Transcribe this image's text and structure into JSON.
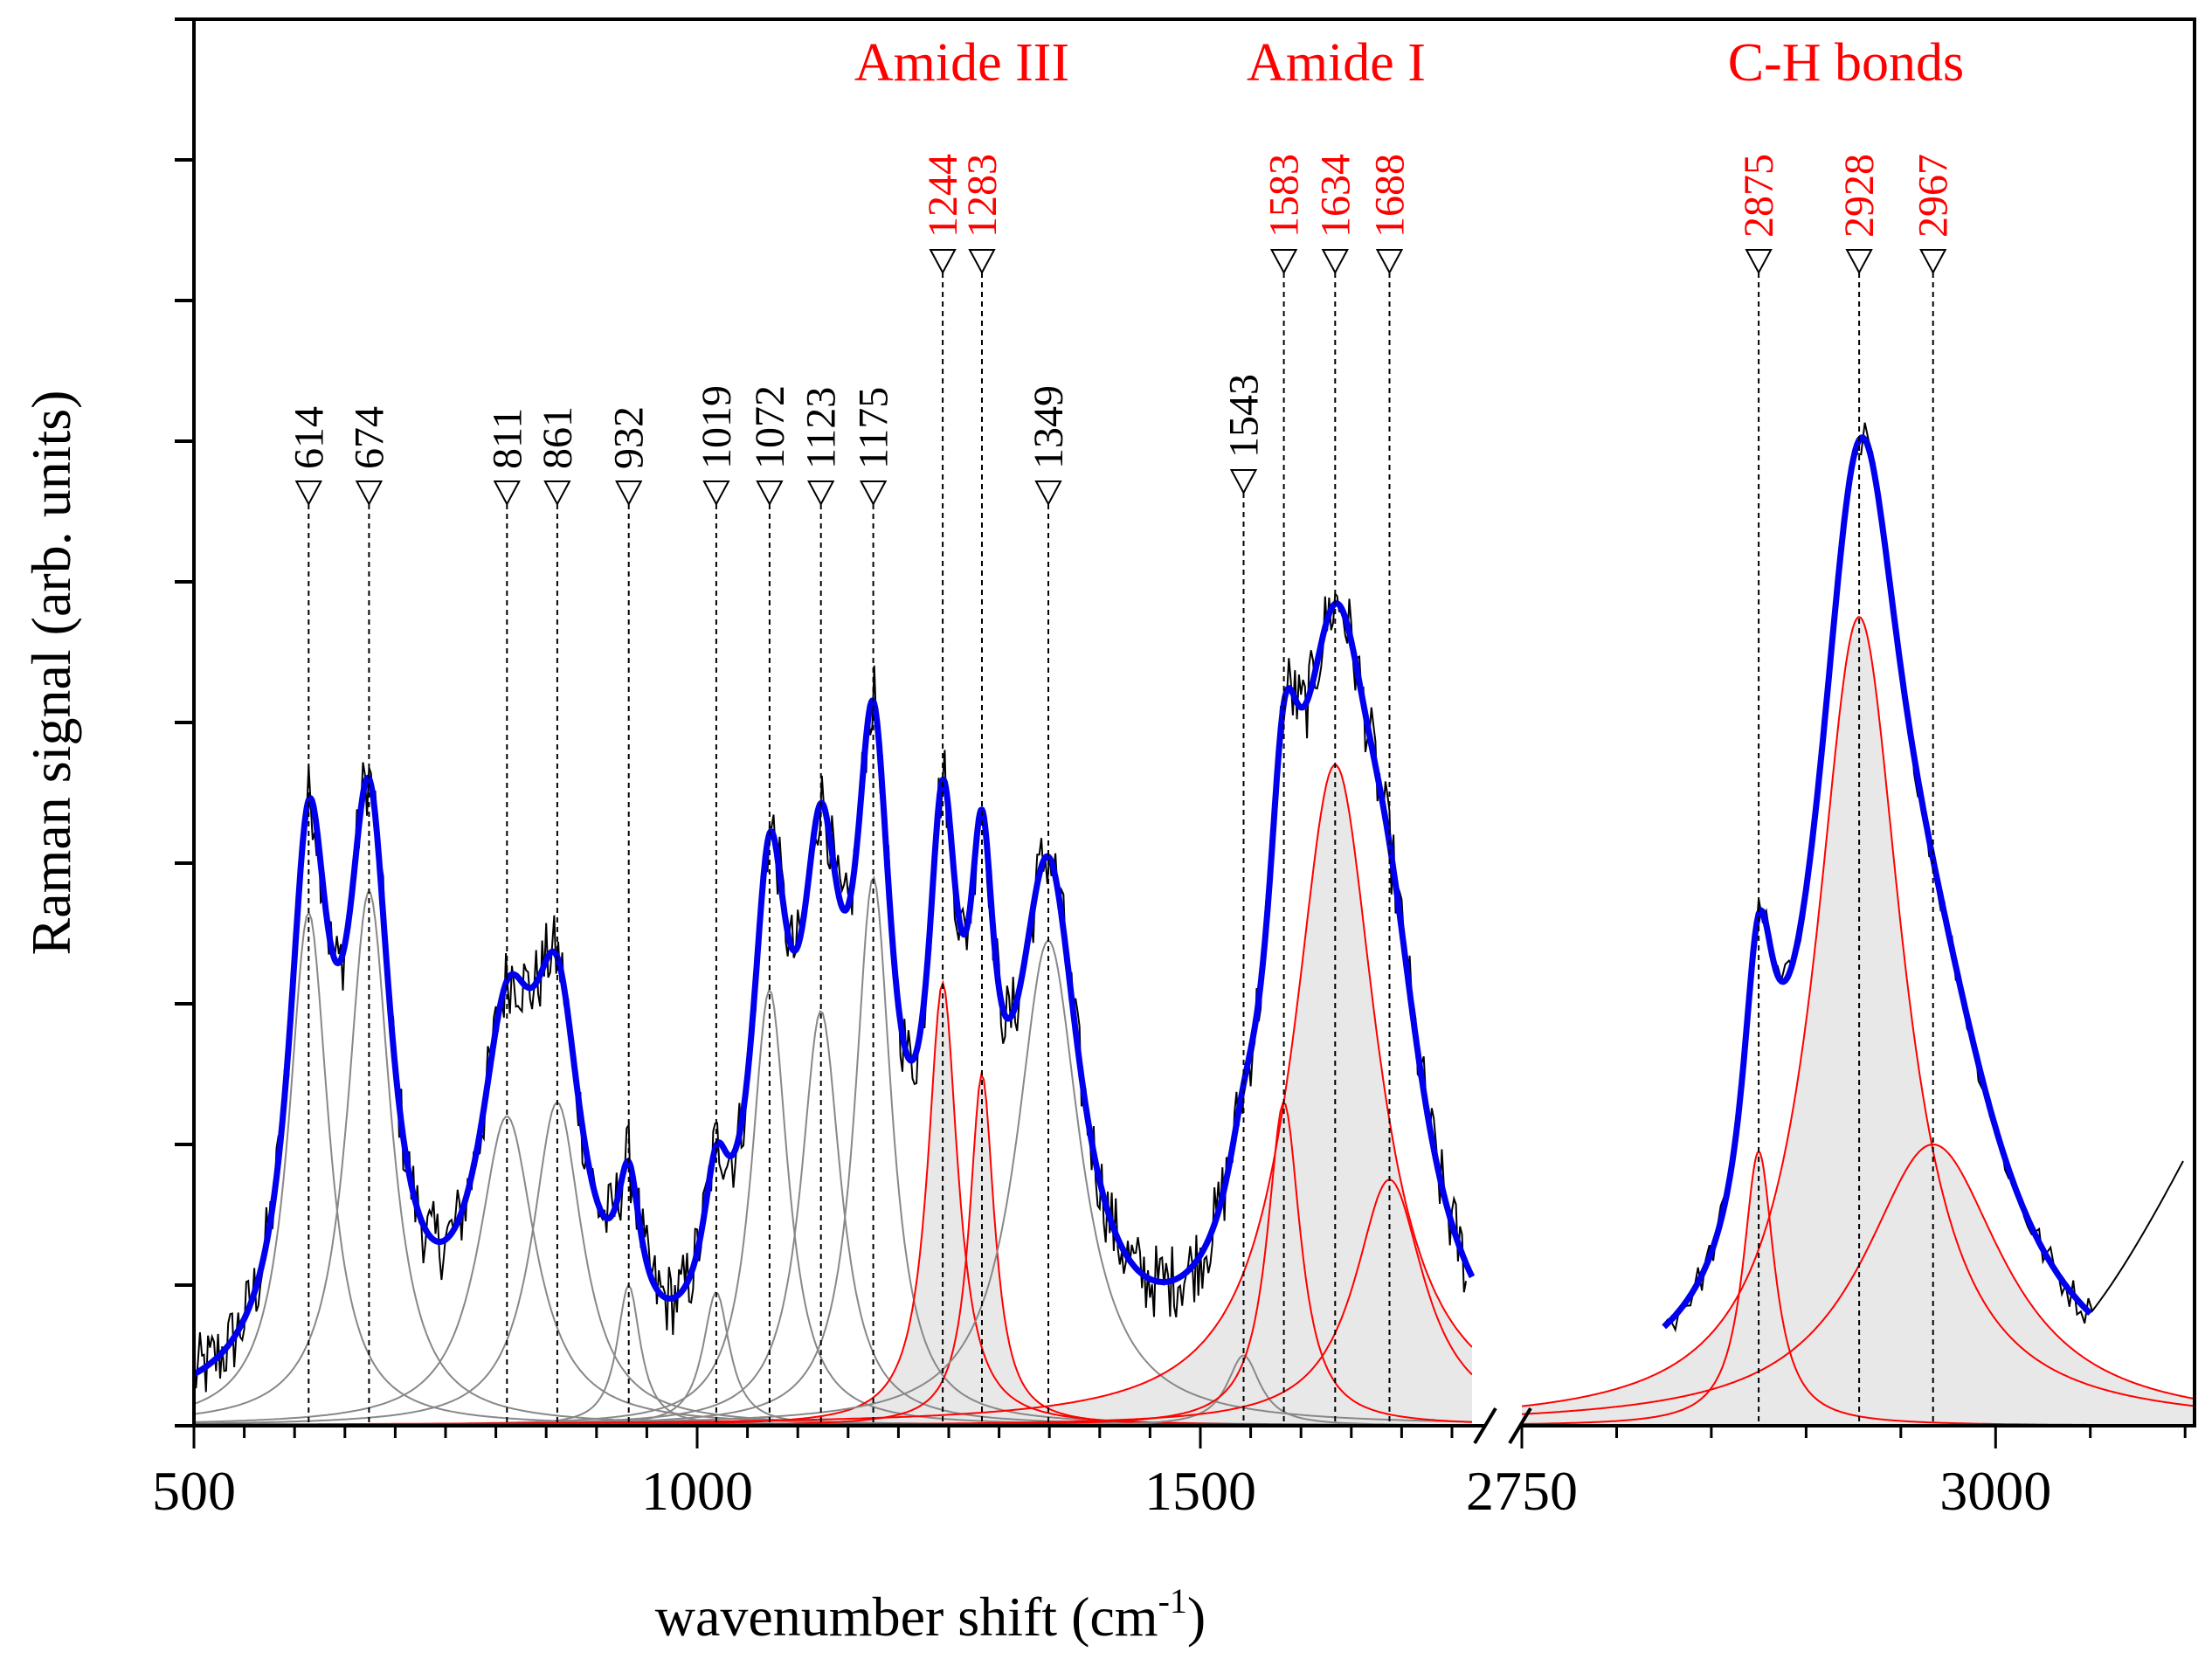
{
  "chart_data": {
    "type": "line",
    "title": "",
    "xlabel": "wavenumber shift (cm",
    "xlabel_sup": "-1",
    "xlabel_close": ")",
    "ylabel": "Raman signal (arb. units)",
    "ylim": [
      0,
      10
    ],
    "broken_x_axis": true,
    "segments": [
      {
        "xlim": [
          500,
          1770
        ],
        "ticks": [
          500,
          1000,
          1500
        ]
      },
      {
        "xlim": [
          2750,
          3105
        ],
        "ticks": [
          2750,
          3000
        ]
      }
    ],
    "colors": {
      "measured": "#000000",
      "fit": "#0000ee",
      "component_generic": "#888888",
      "component_assigned": "#ff0000",
      "band_label": "#ff0000",
      "fill": "#e8e8e8"
    },
    "group_labels": [
      {
        "text": "Amide III",
        "x": 1263
      },
      {
        "text": "Amide I",
        "x": 1635
      },
      {
        "text": "C-H bonds",
        "x": 2921
      }
    ],
    "peaks": [
      {
        "label": "614",
        "x": 614,
        "amp": 3.65,
        "w": 24,
        "assigned": false
      },
      {
        "label": "674",
        "x": 674,
        "amp": 3.8,
        "w": 26,
        "assigned": false
      },
      {
        "label": "811",
        "x": 811,
        "amp": 2.2,
        "w": 34,
        "assigned": false
      },
      {
        "label": "861",
        "x": 861,
        "amp": 2.3,
        "w": 30,
        "assigned": false
      },
      {
        "label": "932",
        "x": 932,
        "amp": 1.0,
        "w": 14,
        "assigned": false
      },
      {
        "label": "1019",
        "x": 1019,
        "amp": 0.95,
        "w": 16,
        "assigned": false
      },
      {
        "label": "1072",
        "x": 1072,
        "amp": 3.1,
        "w": 22,
        "assigned": false
      },
      {
        "label": "1123",
        "x": 1123,
        "amp": 2.95,
        "w": 24,
        "assigned": false
      },
      {
        "label": "1175",
        "x": 1175,
        "amp": 3.9,
        "w": 22,
        "assigned": false
      },
      {
        "label": "1244",
        "x": 1244,
        "amp": 3.15,
        "w": 18,
        "assigned": true
      },
      {
        "label": "1283",
        "x": 1283,
        "amp": 2.5,
        "w": 15,
        "assigned": true
      },
      {
        "label": "1349",
        "x": 1349,
        "amp": 3.45,
        "w": 38,
        "assigned": false
      },
      {
        "label": "1543",
        "x": 1543,
        "amp": 0.5,
        "w": 20,
        "assigned": false
      },
      {
        "label": "1583",
        "x": 1583,
        "amp": 2.3,
        "w": 20,
        "assigned": true
      },
      {
        "label": "1634",
        "x": 1634,
        "amp": 4.7,
        "w": 50,
        "assigned": true
      },
      {
        "label": "1688",
        "x": 1688,
        "amp": 1.75,
        "w": 42,
        "assigned": true
      },
      {
        "label": "2875",
        "x": 2875,
        "amp": 1.95,
        "w": 10,
        "assigned": true
      },
      {
        "label": "2928",
        "x": 2928,
        "amp": 5.75,
        "w": 28,
        "assigned": true
      },
      {
        "label": "2967",
        "x": 2967,
        "amp": 2.0,
        "w": 45,
        "assigned": true
      }
    ],
    "fit_range": [
      [
        500,
        1770
      ],
      [
        2825,
        3050
      ]
    ],
    "baseline": 0.05
  }
}
